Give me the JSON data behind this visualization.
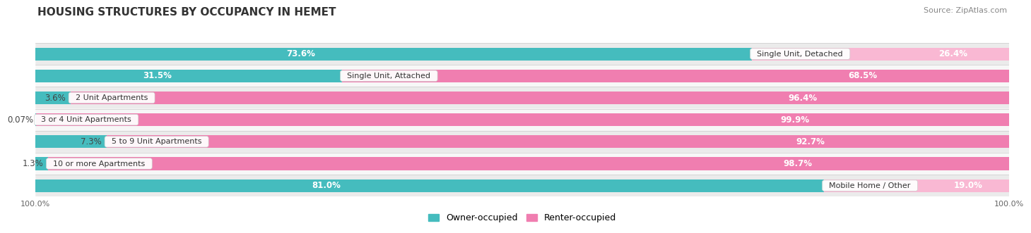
{
  "title": "HOUSING STRUCTURES BY OCCUPANCY IN HEMET",
  "source": "Source: ZipAtlas.com",
  "categories": [
    "Single Unit, Detached",
    "Single Unit, Attached",
    "2 Unit Apartments",
    "3 or 4 Unit Apartments",
    "5 to 9 Unit Apartments",
    "10 or more Apartments",
    "Mobile Home / Other"
  ],
  "owner_pct": [
    73.6,
    31.5,
    3.6,
    0.07,
    7.3,
    1.3,
    81.0
  ],
  "renter_pct": [
    26.4,
    68.5,
    96.4,
    99.9,
    92.7,
    98.7,
    19.0
  ],
  "owner_color": "#45BCBE",
  "renter_color": "#F07EB0",
  "renter_light_color": "#F9B8D3",
  "owner_label": "Owner-occupied",
  "renter_label": "Renter-occupied",
  "bar_height": 0.58,
  "row_bg_even": "#EBEBEB",
  "row_bg_odd": "#F7F7F7",
  "label_fontsize": 8.5,
  "title_fontsize": 11,
  "source_fontsize": 8
}
